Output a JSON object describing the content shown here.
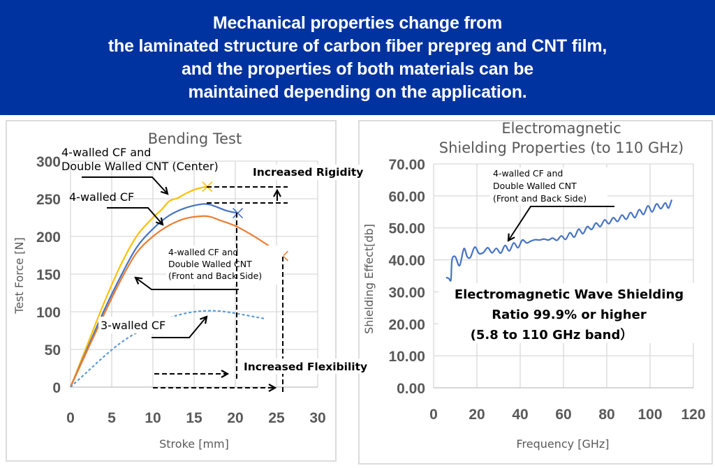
{
  "header": {
    "lines": [
      "Mechanical properties change from",
      "the laminated structure of carbon fiber prepreg and CNT film,",
      "and the properties of both materials can be",
      "maintained depending on the application."
    ],
    "background": "#0033A0"
  },
  "chart_data": [
    {
      "type": "line",
      "title": "Bending Test",
      "xlabel": "Stroke [mm]",
      "ylabel": "Test Force [N]",
      "xlim": [
        0,
        30
      ],
      "ylim": [
        0,
        300
      ],
      "xticks": [
        "0",
        "5",
        "10",
        "15",
        "20",
        "25",
        "30"
      ],
      "yticks": [
        "0",
        "50",
        "100",
        "150",
        "200",
        "250",
        "300"
      ],
      "grid": true,
      "series": [
        {
          "name": "4-walled CF and Double Walled CNT (Center)",
          "color": "#FFC000",
          "style": "solid",
          "end_marker": "x",
          "x": [
            0,
            2,
            4,
            6,
            8,
            10,
            11,
            12,
            13,
            14,
            15,
            16,
            16.6
          ],
          "y": [
            0,
            55,
            110,
            160,
            200,
            225,
            235,
            247,
            251,
            257,
            262,
            265,
            266
          ]
        },
        {
          "name": "4-walled CF",
          "color": "#4472C4",
          "style": "solid",
          "end_marker": "x",
          "x": [
            0,
            2,
            4,
            6,
            8,
            10,
            12,
            14,
            16,
            17,
            18,
            19,
            20.3
          ],
          "y": [
            0,
            50,
            100,
            145,
            185,
            210,
            228,
            238,
            243,
            242,
            238,
            234,
            231
          ]
        },
        {
          "name": "4-walled CF and Double Walled CNT (Front and Back Side)",
          "color": "#ED7D31",
          "style": "solid",
          "end_marker": "x",
          "x": [
            0,
            2,
            4,
            6,
            8,
            10,
            12,
            14,
            16,
            17,
            18,
            20,
            22,
            24,
            25.8
          ],
          "y": [
            0,
            48,
            95,
            140,
            178,
            200,
            215,
            224,
            227,
            226,
            222,
            214,
            202,
            188,
            174
          ]
        },
        {
          "name": "3-walled CF",
          "color": "#5B9BD5",
          "style": "dashed",
          "end_marker": "none",
          "x": [
            0,
            2,
            4,
            6,
            8,
            10,
            12,
            14,
            16,
            18,
            20,
            22,
            23.5
          ],
          "y": [
            0,
            20,
            40,
            58,
            72,
            82,
            92,
            98,
            101,
            101,
            98,
            94,
            91
          ]
        }
      ],
      "annotations": {
        "center_label": [
          "4-walled CF and",
          "Double Walled CNT (Center)"
        ],
        "four_walled_label": "4-walled CF",
        "front_back_label": [
          "4-walled CF and",
          "Double Walled CNT",
          "(Front and Back Side)"
        ],
        "three_walled_label": "3-walled CF",
        "rigidity_label": "Increased Rigidity",
        "flexibility_label": "Increased Flexibility",
        "rigidity_levels": [
          266,
          243
        ],
        "flexibility_strokes": [
          20.3,
          25.8
        ]
      }
    },
    {
      "type": "line",
      "title": "Electromagnetic Shielding Properties (to 110 GHz)",
      "title_lines": [
        "Electromagnetic",
        "Shielding Properties (to 110 GHz)"
      ],
      "xlabel": "Frequency [GHz]",
      "ylabel": "Shielding Effect[db]",
      "xlim": [
        0,
        120
      ],
      "ylim": [
        0,
        70
      ],
      "xticks": [
        "0",
        "20",
        "40",
        "60",
        "80",
        "100",
        "120"
      ],
      "yticks": [
        "0.00",
        "10.00",
        "20.00",
        "30.00",
        "40.00",
        "50.00",
        "60.00",
        "70.00"
      ],
      "grid": true,
      "series": [
        {
          "name": "4-walled CF and Double Walled CNT (Front and Back Side)",
          "color": "#4472C4",
          "x": [
            5.8,
            7,
            8,
            8.5,
            10,
            12,
            14,
            15.5,
            17,
            19,
            21,
            23,
            25,
            27,
            29,
            31,
            33,
            35,
            37,
            39,
            41,
            43,
            45,
            47,
            49,
            51,
            53,
            55,
            57,
            59,
            61,
            63,
            65,
            67,
            69,
            71,
            73,
            75,
            77,
            79,
            81,
            83,
            85,
            87,
            89,
            91,
            93,
            95,
            97,
            99,
            101,
            103,
            105,
            107,
            108.5,
            110
          ],
          "y": [
            34.5,
            34.2,
            33.8,
            40,
            41,
            38.2,
            43.5,
            41,
            40.8,
            44,
            42,
            42.3,
            43.8,
            42.2,
            43.6,
            42.1,
            44.5,
            42.8,
            45.3,
            43.8,
            46.2,
            45.3,
            45.9,
            46.3,
            46.2,
            46.5,
            46.2,
            46.8,
            46.1,
            47.5,
            46.4,
            48.5,
            47.1,
            49.6,
            48.2,
            50.4,
            49.5,
            51.5,
            50.4,
            52.5,
            51.3,
            53.2,
            52.0,
            54.0,
            52.7,
            54.8,
            53.2,
            55.7,
            54.2,
            56.9,
            55.0,
            57.5,
            56.0,
            57.8,
            56.2,
            58.8
          ]
        }
      ],
      "annotations": {
        "series_label": [
          "4-walled CF and",
          "Double Walled CNT",
          "(Front and Back Side)"
        ],
        "callout": [
          "Electromagnetic Wave Shielding",
          "Ratio 99.9% or higher",
          "(5.8 to 110 GHz band）"
        ]
      }
    }
  ]
}
